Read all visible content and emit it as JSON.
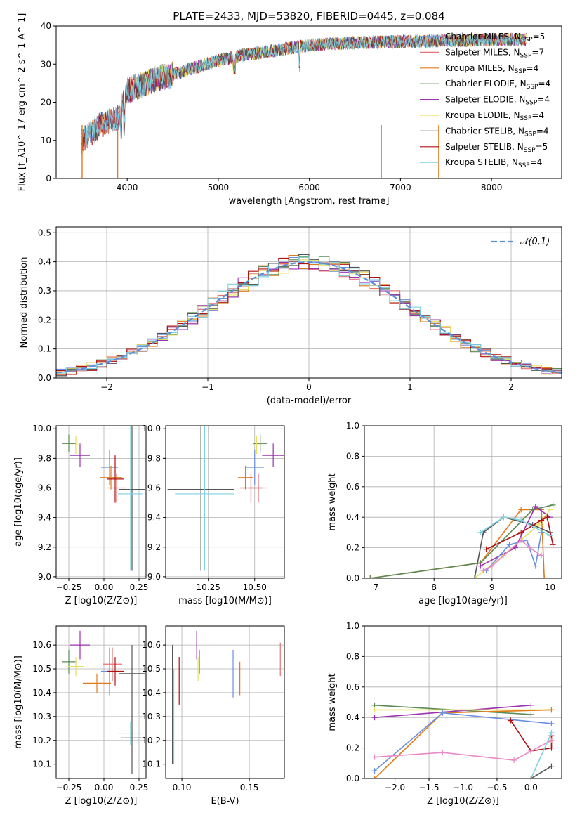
{
  "figure": {
    "title": "PLATE=2433, MJD=53820, FIBERID=0445, z=0.084"
  },
  "colors": {
    "Chabrier MILES": "#6a8fe0",
    "Salpeter MILES": "#e57373",
    "Kroupa MILES": "#e07b1c",
    "Chabrier ELODIE": "#5a8a55",
    "Salpeter ELODIE": "#9b30b0",
    "Kroupa ELODIE": "#e6e060",
    "Chabrier STELIB": "#555555",
    "Salpeter STELIB": "#b01010",
    "Kroupa STELIB": "#7fd0e0",
    "gaussian": "#5b8fd8",
    "pink": "#e88ac8",
    "green": "#5fa83a",
    "lime": "#c8e060",
    "teal": "#2f7f7f"
  },
  "chart_data": [
    {
      "id": "spectrum",
      "type": "line",
      "title": "PLATE=2433, MJD=53820, FIBERID=0445, z=0.084",
      "xlabel": "wavelength [Angstrom, rest frame]",
      "ylabel": "Flux [f_λ10^-17 erg cm^-2 s^-1 A^-1]",
      "xlim": [
        3220,
        8770
      ],
      "ylim": [
        0,
        40
      ],
      "xticks": [
        4000,
        5000,
        6000,
        7000,
        8000
      ],
      "yticks": [
        0,
        10,
        20,
        30,
        40
      ],
      "continuum_x": [
        3500,
        3700,
        3900,
        4000,
        4300,
        4600,
        5000,
        5300,
        5600,
        6000,
        6400,
        6800,
        7200,
        7600,
        8000,
        8400,
        8700
      ],
      "continuum_y": [
        10,
        14,
        16,
        23,
        26,
        28,
        31,
        32.5,
        33.5,
        35,
        35.5,
        35.8,
        36,
        36.2,
        36.4,
        36.5,
        36.6
      ],
      "legend": [
        {
          "label": "Chabrier MILES, N",
          "sub": "SSP",
          "tail": "=5"
        },
        {
          "label": "Salpeter MILES, N",
          "sub": "SSP",
          "tail": "=7"
        },
        {
          "label": "Kroupa MILES, N",
          "sub": "SSP",
          "tail": "=4"
        },
        {
          "label": "Chabrier ELODIE, N",
          "sub": "SSP",
          "tail": "=4"
        },
        {
          "label": "Salpeter ELODIE, N",
          "sub": "SSP",
          "tail": "=4"
        },
        {
          "label": "Kroupa ELODIE, N",
          "sub": "SSP",
          "tail": "=4"
        },
        {
          "label": "Chabrier STELIB, N",
          "sub": "SSP",
          "tail": "=4"
        },
        {
          "label": "Salpeter STELIB, N",
          "sub": "SSP",
          "tail": "=5"
        },
        {
          "label": "Kroupa STELIB, N",
          "sub": "SSP",
          "tail": "=4"
        }
      ],
      "legend_position": "upper right"
    },
    {
      "id": "residuals",
      "type": "line",
      "xlabel": "(data-model)/error",
      "ylabel": "Normed distribution",
      "xlim": [
        -2.5,
        2.5
      ],
      "ylim": [
        0,
        0.52
      ],
      "xticks": [
        -2,
        -1,
        0,
        1,
        2
      ],
      "yticks": [
        0.0,
        0.1,
        0.2,
        0.3,
        0.4,
        0.5
      ],
      "legend": [
        "𝒩(0,1)"
      ],
      "legend_position": "upper right",
      "gaussian": {
        "mu": 0,
        "sigma": 1
      }
    },
    {
      "id": "age-vs-Z",
      "type": "scatter",
      "xlabel": "Z [log10(Z/Z⊙)]",
      "ylabel": "age [log10(age/yr)]",
      "xlim": [
        -0.34,
        0.3
      ],
      "ylim": [
        8.99,
        10.02
      ],
      "xticks": [
        -0.25,
        0.0,
        0.25
      ],
      "yticks": [
        9.0,
        9.2,
        9.4,
        9.6,
        9.8,
        10.0
      ],
      "points": [
        {
          "model": "Chabrier MILES",
          "x": 0.04,
          "y": 9.74,
          "xerr": 0.06,
          "yerr": 0.12
        },
        {
          "model": "Salpeter MILES",
          "x": 0.09,
          "y": 9.6,
          "xerr": 0.07,
          "yerr": 0.1
        },
        {
          "model": "Kroupa MILES",
          "x": 0.05,
          "y": 9.67,
          "xerr": 0.08,
          "yerr": 0.08
        },
        {
          "model": "Chabrier ELODIE",
          "x": -0.25,
          "y": 9.9,
          "xerr": 0.05,
          "yerr": 0.06
        },
        {
          "model": "Salpeter ELODIE",
          "x": -0.17,
          "y": 9.82,
          "xerr": 0.07,
          "yerr": 0.08
        },
        {
          "model": "Kroupa ELODIE",
          "x": -0.2,
          "y": 9.89,
          "xerr": 0.06,
          "yerr": 0.06
        },
        {
          "model": "Chabrier STELIB",
          "x": 0.2,
          "y": 9.59,
          "xerr": 0.09,
          "yerr": 0.55
        },
        {
          "model": "Salpeter STELIB",
          "x": 0.08,
          "y": 9.66,
          "xerr": 0.06,
          "yerr": 0.16
        },
        {
          "model": "Kroupa STELIB",
          "x": 0.19,
          "y": 9.56,
          "xerr": 0.09,
          "yerr": 0.52
        }
      ]
    },
    {
      "id": "age-vs-mass",
      "type": "scatter",
      "xlabel": "mass [log10(M/M⊙)]",
      "xlim": [
        10.02,
        10.66
      ],
      "ylim": [
        8.99,
        10.02
      ],
      "xticks": [
        10.25,
        10.5
      ],
      "yticks": [
        9.0,
        9.2,
        9.4,
        9.6,
        9.8,
        10.0
      ],
      "points": [
        {
          "model": "Chabrier MILES",
          "x": 10.5,
          "y": 9.74,
          "xerr": 0.05,
          "yerr": 0.12
        },
        {
          "model": "Salpeter MILES",
          "x": 10.52,
          "y": 9.6,
          "xerr": 0.05,
          "yerr": 0.1
        },
        {
          "model": "Kroupa MILES",
          "x": 10.45,
          "y": 9.67,
          "xerr": 0.04,
          "yerr": 0.08
        },
        {
          "model": "Chabrier ELODIE",
          "x": 10.53,
          "y": 9.9,
          "xerr": 0.04,
          "yerr": 0.06
        },
        {
          "model": "Salpeter ELODIE",
          "x": 10.6,
          "y": 9.82,
          "xerr": 0.06,
          "yerr": 0.08
        },
        {
          "model": "Kroupa ELODIE",
          "x": 10.51,
          "y": 9.89,
          "xerr": 0.04,
          "yerr": 0.06
        },
        {
          "model": "Chabrier STELIB",
          "x": 10.21,
          "y": 9.59,
          "xerr": 0.18,
          "yerr": 0.55
        },
        {
          "model": "Salpeter STELIB",
          "x": 10.48,
          "y": 9.6,
          "xerr": 0.06,
          "yerr": 0.1
        },
        {
          "model": "Kroupa STELIB",
          "x": 10.23,
          "y": 9.56,
          "xerr": 0.16,
          "yerr": 0.52
        }
      ]
    },
    {
      "id": "weight-vs-age",
      "type": "line",
      "xlabel": "age [log10(age/yr)]",
      "ylabel": "mass weight",
      "xlim": [
        6.8,
        10.2
      ],
      "ylim": [
        0,
        1.0
      ],
      "xticks": [
        7,
        8,
        9,
        10
      ],
      "yticks": [
        0.0,
        0.2,
        0.4,
        0.6,
        0.8,
        1.0
      ],
      "series": [
        {
          "model": "Kroupa MILES",
          "x": [
            6.9,
            8.8,
            9.5,
            9.85,
            9.9
          ],
          "y": [
            0.0,
            0.1,
            0.45,
            0.45,
            0.0
          ]
        },
        {
          "model": "Chabrier ELODIE",
          "x": [
            6.9,
            8.8,
            9.7,
            10.05
          ],
          "y": [
            0.0,
            0.1,
            0.45,
            0.48
          ]
        },
        {
          "model": "Salpeter ELODIE",
          "x": [
            8.8,
            9.4,
            9.75,
            10.0
          ],
          "y": [
            0.08,
            0.2,
            0.47,
            0.4
          ]
        },
        {
          "model": "Kroupa ELODIE",
          "x": [
            8.7,
            9.2,
            9.8,
            10.0
          ],
          "y": [
            0.0,
            0.15,
            0.35,
            0.45
          ]
        },
        {
          "model": "Chabrier STELIB",
          "x": [
            8.7,
            8.85,
            9.2,
            9.7,
            10.0
          ],
          "y": [
            0.0,
            0.3,
            0.4,
            0.35,
            0.3
          ]
        },
        {
          "model": "Salpeter STELIB",
          "x": [
            8.9,
            9.5,
            9.85,
            9.95,
            10.05
          ],
          "y": [
            0.19,
            0.3,
            0.38,
            0.4,
            0.22
          ]
        },
        {
          "model": "Kroupa STELIB",
          "x": [
            8.8,
            9.2,
            9.5,
            10.0
          ],
          "y": [
            0.3,
            0.4,
            0.38,
            0.28
          ]
        },
        {
          "model": "Chabrier MILES",
          "x": [
            8.9,
            9.3,
            9.6,
            9.75,
            9.85
          ],
          "y": [
            0.05,
            0.22,
            0.25,
            0.08,
            0.3
          ]
        },
        {
          "model": "pink",
          "x": [
            8.85,
            9.0,
            9.5,
            9.65,
            9.85
          ],
          "y": [
            0.05,
            0.08,
            0.25,
            0.2,
            0.15
          ]
        }
      ]
    },
    {
      "id": "mass-vs-Z",
      "type": "scatter",
      "xlabel": "Z [log10(Z/Z⊙)]",
      "ylabel": "mass [log10(M/M⊙)]",
      "xlim": [
        -0.34,
        0.3
      ],
      "ylim": [
        10.04,
        10.68
      ],
      "xticks": [
        -0.25,
        0.0,
        0.25
      ],
      "yticks": [
        10.1,
        10.2,
        10.3,
        10.4,
        10.5,
        10.6
      ],
      "points": [
        {
          "model": "Chabrier MILES",
          "x": 0.04,
          "y": 10.49,
          "xerr": 0.06,
          "yerr": 0.1
        },
        {
          "model": "Salpeter MILES",
          "x": 0.06,
          "y": 10.52,
          "xerr": 0.07,
          "yerr": 0.07
        },
        {
          "model": "Kroupa MILES",
          "x": -0.05,
          "y": 10.44,
          "xerr": 0.1,
          "yerr": 0.04
        },
        {
          "model": "Chabrier ELODIE",
          "x": -0.25,
          "y": 10.53,
          "xerr": 0.05,
          "yerr": 0.05
        },
        {
          "model": "Salpeter ELODIE",
          "x": -0.17,
          "y": 10.6,
          "xerr": 0.07,
          "yerr": 0.06
        },
        {
          "model": "Kroupa ELODIE",
          "x": -0.2,
          "y": 10.51,
          "xerr": 0.06,
          "yerr": 0.04
        },
        {
          "model": "Chabrier STELIB",
          "x": 0.2,
          "y": 10.48,
          "xerr": 0.09,
          "yerr": 0.12
        },
        {
          "model": "Salpeter STELIB",
          "x": 0.08,
          "y": 10.49,
          "xerr": 0.06,
          "yerr": 0.06
        },
        {
          "model": "Kroupa STELIB",
          "x": 0.19,
          "y": 10.23,
          "xerr": 0.09,
          "yerr": 0.05
        },
        {
          "model": "Chabrier STELIB",
          "x": 0.2,
          "y": 10.21,
          "xerr": 0.08,
          "yerr": 0.15
        }
      ]
    },
    {
      "id": "mass-vs-EBV",
      "type": "scatter",
      "xlabel": "E(B-V)",
      "xlim": [
        0.088,
        0.176
      ],
      "ylim": [
        10.04,
        10.68
      ],
      "xticks": [
        0.1,
        0.15
      ],
      "yticks": [
        10.1,
        10.2,
        10.3,
        10.4,
        10.5,
        10.6
      ],
      "points": [
        {
          "model": "Chabrier STELIB",
          "x": 0.093,
          "y": 10.35,
          "xerr": 0,
          "yerr": 0.25
        },
        {
          "model": "Kroupa STELIB",
          "x": 0.094,
          "y": 10.3,
          "xerr": 0,
          "yerr": 0.2
        },
        {
          "model": "Salpeter STELIB",
          "x": 0.098,
          "y": 10.45,
          "xerr": 0,
          "yerr": 0.1
        },
        {
          "model": "Salpeter ELODIE",
          "x": 0.111,
          "y": 10.6,
          "xerr": 0,
          "yerr": 0.06
        },
        {
          "model": "Kroupa ELODIE",
          "x": 0.112,
          "y": 10.5,
          "xerr": 0,
          "yerr": 0.05
        },
        {
          "model": "Chabrier ELODIE",
          "x": 0.113,
          "y": 10.53,
          "xerr": 0,
          "yerr": 0.05
        },
        {
          "model": "Chabrier MILES",
          "x": 0.138,
          "y": 10.48,
          "xerr": 0,
          "yerr": 0.1
        },
        {
          "model": "Kroupa MILES",
          "x": 0.143,
          "y": 10.46,
          "xerr": 0,
          "yerr": 0.07
        },
        {
          "model": "Salpeter MILES",
          "x": 0.173,
          "y": 10.54,
          "xerr": 0,
          "yerr": 0.07
        }
      ]
    },
    {
      "id": "weight-vs-Z",
      "type": "line",
      "xlabel": "Z [log10(Z/Z⊙)]",
      "ylabel": "mass weight",
      "xlim": [
        -2.45,
        0.45
      ],
      "ylim": [
        0,
        1.0
      ],
      "xticks": [
        -2.0,
        -1.5,
        -1.0,
        -0.5,
        0.0
      ],
      "yticks": [
        0.0,
        0.2,
        0.4,
        0.6,
        0.8,
        1.0
      ],
      "series": [
        {
          "model": "Chabrier ELODIE",
          "x": [
            -2.3,
            0.0
          ],
          "y": [
            0.48,
            0.42
          ]
        },
        {
          "model": "Salpeter ELODIE",
          "x": [
            -2.3,
            0.0
          ],
          "y": [
            0.4,
            0.48
          ]
        },
        {
          "model": "Kroupa ELODIE",
          "x": [
            -2.3,
            0.3
          ],
          "y": [
            0.45,
            0.45
          ]
        },
        {
          "model": "Kroupa MILES",
          "x": [
            -2.3,
            -1.3,
            0.3
          ],
          "y": [
            0.0,
            0.43,
            0.45
          ]
        },
        {
          "model": "Chabrier MILES",
          "x": [
            -2.3,
            -1.3,
            0.3
          ],
          "y": [
            0.05,
            0.43,
            0.36
          ]
        },
        {
          "model": "Salpeter STELIB",
          "x": [
            -0.3,
            0.0,
            0.3,
            0.3
          ],
          "y": [
            0.38,
            0.18,
            0.2,
            0.28
          ]
        },
        {
          "model": "pink",
          "x": [
            -2.3,
            -1.3,
            -0.25,
            0.0,
            0.3
          ],
          "y": [
            0.14,
            0.17,
            0.12,
            0.18,
            0.25
          ]
        },
        {
          "model": "Kroupa STELIB",
          "x": [
            0.0,
            0.3
          ],
          "y": [
            0.0,
            0.3
          ]
        },
        {
          "model": "Chabrier STELIB",
          "x": [
            0.0,
            0.3
          ],
          "y": [
            0.0,
            0.08
          ]
        }
      ]
    }
  ]
}
